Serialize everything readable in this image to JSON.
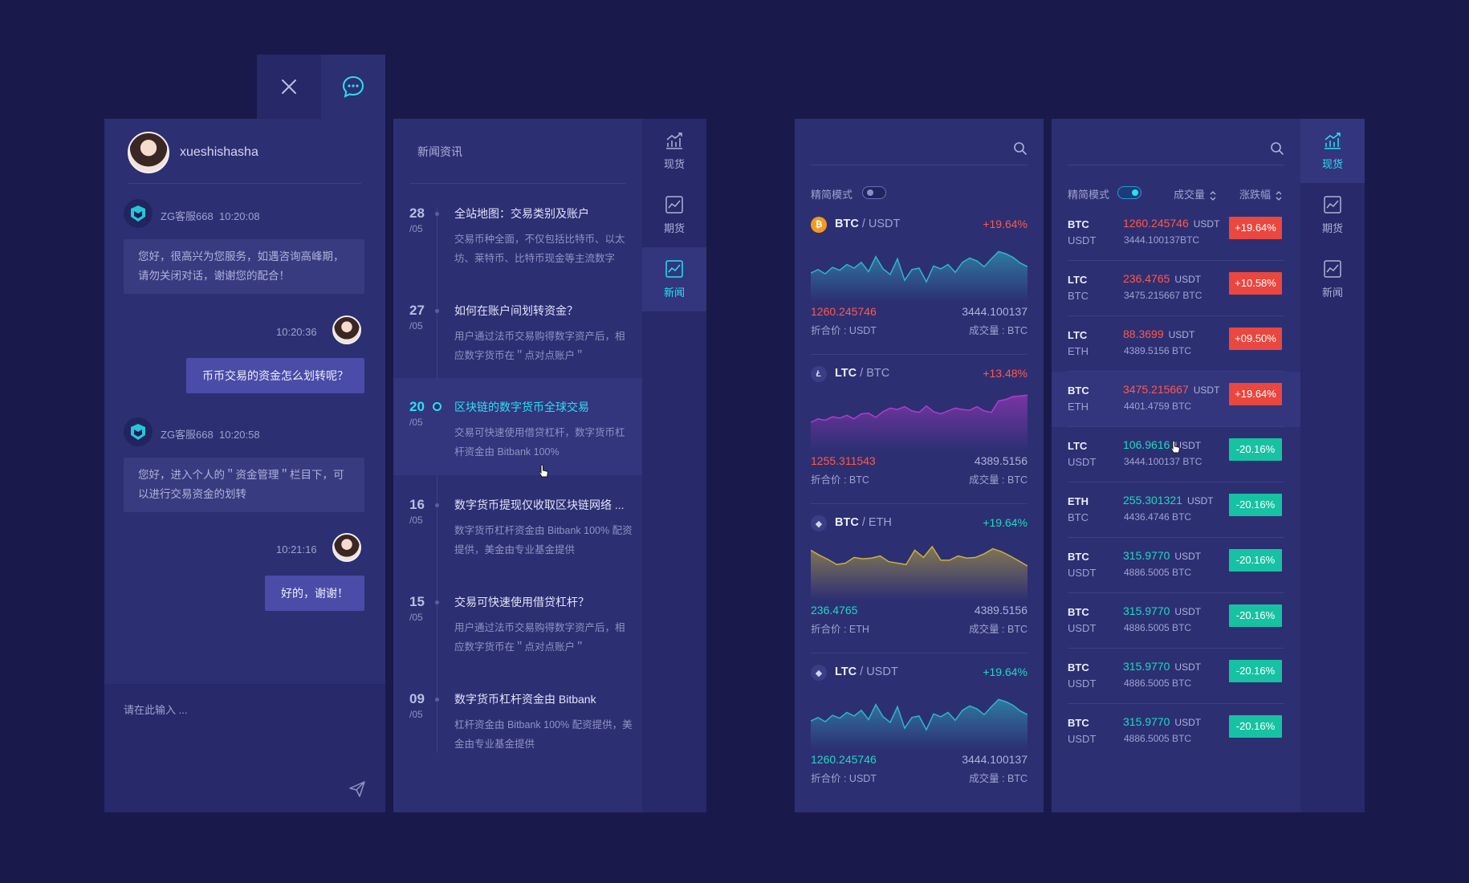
{
  "chat": {
    "username": "xueshishasha",
    "messages": [
      {
        "from": "agent",
        "name": "ZG客服668",
        "time": "10:20:08",
        "text": "您好，很高兴为您服务，如遇咨询高峰期，请勿关闭对话，谢谢您的配合！"
      },
      {
        "from": "me",
        "time": "10:20:36",
        "text": "币币交易的资金怎么划转呢？"
      },
      {
        "from": "agent",
        "name": "ZG客服668",
        "time": "10:20:58",
        "text": "您好，进入个人的＂资金管理＂栏目下，可以进行交易资金的划转"
      },
      {
        "from": "me",
        "time": "10:21:16",
        "text": "好的，谢谢！"
      }
    ],
    "input_placeholder": "请在此输入 ...",
    "icons": {
      "close": "close-icon",
      "chat": "chat-bubble-icon",
      "send": "send-icon"
    }
  },
  "news": {
    "title": "新闻资讯",
    "items": [
      {
        "day": "28",
        "month": "/05",
        "title": "全站地图：交易类别及账户",
        "desc": "交易币种全面，不仅包括比特币、以太坊、莱特币、比特币现金等主流数字"
      },
      {
        "day": "27",
        "month": "/05",
        "title": "如何在账户间划转资金？",
        "desc": "用户通过法币交易购得数字资产后，相应数字货币在＂点对点账户＂"
      },
      {
        "day": "20",
        "month": "/05",
        "title": "区块链的数字货币全球交易",
        "desc": "交易可快速使用借贷杠杆，数字货币杠杆资金由 Bitbank 100%"
      },
      {
        "day": "16",
        "month": "/05",
        "title": "数字货币提现仅收取区块链网络 ...",
        "desc": "数字货币杠杆资金由 Bitbank 100% 配资提供，美金由专业基金提供"
      },
      {
        "day": "15",
        "month": "/05",
        "title": "交易可快速使用借贷杠杆？",
        "desc": "用户通过法币交易购得数字资产后，相应数字货币在＂点对点账户＂"
      },
      {
        "day": "09",
        "month": "/05",
        "title": "数字货币杠杆资金由 Bitbank",
        "desc": "杠杆资金由 Bitbank 100% 配资提供，美金由专业基金提供"
      }
    ]
  },
  "side_nav": {
    "items": [
      {
        "label": "现货",
        "icon": "trend-chart-icon"
      },
      {
        "label": "期货",
        "icon": "futures-chart-icon"
      },
      {
        "label": "新闻",
        "icon": "news-chart-icon"
      }
    ]
  },
  "market_cards": {
    "mode_label": "精简模式",
    "mode_on": false,
    "cards": [
      {
        "coin": "BTC",
        "icon": "bitcoin-icon",
        "base": "BTC",
        "quote": " / USDT",
        "change": "+19.64%",
        "direction": "up",
        "price": "1260.245746",
        "volume": "3444.100137",
        "price_unit": "折合价 : USDT",
        "volume_unit": "成交量 : BTC",
        "color": "#2fb6c9",
        "spark": [
          40,
          45,
          39,
          48,
          44,
          52,
          47,
          55,
          42,
          63,
          46,
          38,
          60,
          30,
          45,
          47,
          28,
          50,
          46,
          52,
          41,
          55,
          61,
          57,
          49,
          60,
          70,
          67,
          62,
          54,
          49
        ]
      },
      {
        "coin": "LTC",
        "icon": "litecoin-icon",
        "base": "LTC",
        "quote": " / BTC",
        "change": "+13.48%",
        "direction": "up",
        "price": "1255.311543",
        "volume": "4389.5156",
        "price_unit": "折合价 : BTC",
        "volume_unit": "成交量 : BTC",
        "color": "#b23bcd",
        "spark": [
          40,
          45,
          43,
          48,
          46,
          50,
          45,
          52,
          53,
          47,
          55,
          60,
          58,
          62,
          56,
          54,
          63,
          55,
          52,
          56,
          60,
          58,
          57,
          62,
          56,
          54,
          70,
          72,
          76,
          77,
          78
        ]
      },
      {
        "coin": "BTC",
        "icon": "ethereum-icon",
        "base": "BTC",
        "quote": " / ETH",
        "change": "+19.64%",
        "direction": "up",
        "price": "236.4765",
        "volume": "4389.5156",
        "price_unit": "折合价 : ETH",
        "volume_unit": "成交量 : BTC",
        "color": "#c9b23a",
        "spark": [
          70,
          63,
          57,
          50,
          52,
          60,
          58,
          59,
          62,
          54,
          52,
          50,
          70,
          60,
          75,
          56,
          56,
          62,
          59,
          60,
          65,
          72,
          68,
          62,
          55,
          48
        ]
      },
      {
        "coin": "LTC",
        "icon": "ethereum-icon",
        "base": "LTC",
        "quote": " / USDT",
        "change": "+19.64%",
        "direction": "up",
        "price": "1260.245746",
        "volume": "3444.100137",
        "price_unit": "折合价 : USDT",
        "volume_unit": "成交量 : BTC",
        "color": "#2fb6c9",
        "spark": [
          40,
          45,
          39,
          48,
          44,
          52,
          47,
          55,
          42,
          63,
          46,
          38,
          60,
          30,
          45,
          47,
          28,
          50,
          46,
          52,
          41,
          55,
          61,
          57,
          49,
          60,
          70,
          67,
          62,
          54,
          49
        ]
      }
    ]
  },
  "market_list": {
    "mode_label": "精简模式",
    "mode_on": true,
    "sort_volume": "成交量",
    "sort_change": "涨跌幅",
    "rows": [
      {
        "base": "BTC",
        "quote": "USDT",
        "price": "1260.245746",
        "unit": "USDT",
        "volume": "3444.100137BTC",
        "change": "+19.64%",
        "direction": "up"
      },
      {
        "base": "LTC",
        "quote": "BTC",
        "price": "236.4765",
        "unit": "USDT",
        "volume": "3475.215667 BTC",
        "change": "+10.58%",
        "direction": "up"
      },
      {
        "base": "LTC",
        "quote": "ETH",
        "price": "88.3699",
        "unit": "USDT",
        "volume": "4389.5156 BTC",
        "change": "+09.50%",
        "direction": "up"
      },
      {
        "base": "BTC",
        "quote": "ETH",
        "price": "3475.215667",
        "unit": "USDT",
        "volume": "4401.4759 BTC",
        "change": "+19.64%",
        "direction": "up"
      },
      {
        "base": "LTC",
        "quote": "USDT",
        "price": "106.9616",
        "unit": "USDT",
        "volume": "3444.100137 BTC",
        "change": "-20.16%",
        "direction": "dn"
      },
      {
        "base": "ETH",
        "quote": "BTC",
        "price": "255.301321",
        "unit": "USDT",
        "volume": "4436.4746 BTC",
        "change": "-20.16%",
        "direction": "dn"
      },
      {
        "base": "BTC",
        "quote": "USDT",
        "price": "315.9770",
        "unit": "USDT",
        "volume": "4886.5005 BTC",
        "change": "-20.16%",
        "direction": "dn"
      },
      {
        "base": "BTC",
        "quote": "USDT",
        "price": "315.9770",
        "unit": "USDT",
        "volume": "4886.5005 BTC",
        "change": "-20.16%",
        "direction": "dn"
      },
      {
        "base": "BTC",
        "quote": "USDT",
        "price": "315.9770",
        "unit": "USDT",
        "volume": "4886.5005 BTC",
        "change": "-20.16%",
        "direction": "dn"
      },
      {
        "base": "BTC",
        "quote": "USDT",
        "price": "315.9770",
        "unit": "USDT",
        "volume": "4886.5005 BTC",
        "change": "-20.16%",
        "direction": "dn"
      }
    ]
  },
  "colors": {
    "accent": "#28e1ef",
    "up": "#e9473f",
    "down": "#17c2a3",
    "background": "#191a4b",
    "panel": "#2d2f73"
  }
}
